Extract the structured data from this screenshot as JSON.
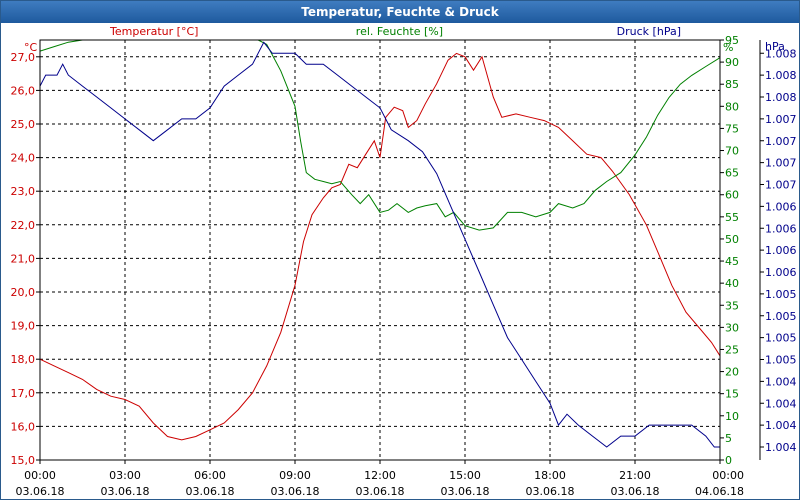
{
  "window": {
    "title": "Temperatur, Feuchte & Druck"
  },
  "colors": {
    "temperature": "#cc0000",
    "humidity": "#008000",
    "pressure": "#00008b",
    "titlebar": "#2a66aa",
    "grid": "#000000"
  },
  "chart_data": {
    "type": "line",
    "grid": true,
    "x_ticks": [
      {
        "time": "00:00",
        "date": "03.06.18"
      },
      {
        "time": "03:00",
        "date": "03.06.18"
      },
      {
        "time": "06:00",
        "date": "03.06.18"
      },
      {
        "time": "09:00",
        "date": "03.06.18"
      },
      {
        "time": "12:00",
        "date": "03.06.18"
      },
      {
        "time": "15:00",
        "date": "03.06.18"
      },
      {
        "time": "18:00",
        "date": "03.06.18"
      },
      {
        "time": "21:00",
        "date": "03.06.18"
      },
      {
        "time": "00:00",
        "date": "04.06.18"
      }
    ],
    "axes": {
      "temperature": {
        "unit": "°C",
        "ylim": [
          15,
          27.5
        ],
        "ticks": [
          "15,0",
          "16,0",
          "17,0",
          "18,0",
          "19,0",
          "20,0",
          "21,0",
          "22,0",
          "23,0",
          "24,0",
          "25,0",
          "26,0",
          "27,0"
        ]
      },
      "humidity": {
        "unit": "%",
        "ylim": [
          0,
          95
        ],
        "ticks": [
          "0",
          "5",
          "10",
          "15",
          "20",
          "25",
          "30",
          "35",
          "40",
          "45",
          "50",
          "55",
          "60",
          "65",
          "70",
          "75",
          "80",
          "85",
          "90",
          "95"
        ]
      },
      "pressure": {
        "unit": "hPa",
        "ticks": [
          "1.004",
          "1.004",
          "1.004",
          "1.004",
          "1.005",
          "1.005",
          "1.005",
          "1.005",
          "1.006",
          "1.006",
          "1.006",
          "1.006",
          "1.007",
          "1.007",
          "1.007",
          "1.007",
          "1.008",
          "1.008",
          "1.008"
        ]
      }
    },
    "series": [
      {
        "name": "Temperatur [°C]",
        "key": "temperature",
        "axis": "temperature",
        "points": [
          [
            0,
            18.0
          ],
          [
            0.5,
            17.8
          ],
          [
            1,
            17.6
          ],
          [
            1.5,
            17.4
          ],
          [
            2,
            17.1
          ],
          [
            2.5,
            16.9
          ],
          [
            3,
            16.8
          ],
          [
            3.5,
            16.6
          ],
          [
            4,
            16.1
          ],
          [
            4.5,
            15.7
          ],
          [
            5,
            15.6
          ],
          [
            5.5,
            15.7
          ],
          [
            6,
            15.9
          ],
          [
            6.5,
            16.1
          ],
          [
            7,
            16.5
          ],
          [
            7.5,
            17.0
          ],
          [
            8,
            17.8
          ],
          [
            8.5,
            18.8
          ],
          [
            9,
            20.2
          ],
          [
            9.3,
            21.5
          ],
          [
            9.6,
            22.3
          ],
          [
            10,
            22.8
          ],
          [
            10.3,
            23.1
          ],
          [
            10.6,
            23.2
          ],
          [
            10.9,
            23.8
          ],
          [
            11.2,
            23.7
          ],
          [
            11.5,
            24.1
          ],
          [
            11.8,
            24.5
          ],
          [
            12,
            24.0
          ],
          [
            12.2,
            25.2
          ],
          [
            12.5,
            25.5
          ],
          [
            12.8,
            25.4
          ],
          [
            13,
            24.9
          ],
          [
            13.3,
            25.1
          ],
          [
            13.6,
            25.6
          ],
          [
            14,
            26.2
          ],
          [
            14.4,
            26.9
          ],
          [
            14.7,
            27.1
          ],
          [
            15,
            27.0
          ],
          [
            15.3,
            26.6
          ],
          [
            15.6,
            27.0
          ],
          [
            16,
            25.8
          ],
          [
            16.3,
            25.2
          ],
          [
            16.8,
            25.3
          ],
          [
            17.3,
            25.2
          ],
          [
            17.8,
            25.1
          ],
          [
            18.3,
            24.9
          ],
          [
            18.8,
            24.5
          ],
          [
            19.3,
            24.1
          ],
          [
            19.8,
            24.0
          ],
          [
            20.2,
            23.6
          ],
          [
            20.8,
            22.9
          ],
          [
            21.4,
            22.0
          ],
          [
            21.8,
            21.2
          ],
          [
            22.3,
            20.2
          ],
          [
            22.8,
            19.4
          ],
          [
            23.3,
            18.9
          ],
          [
            23.7,
            18.5
          ],
          [
            24,
            18.1
          ]
        ]
      },
      {
        "name": "rel. Feuchte [%]",
        "key": "humidity",
        "axis": "humidity",
        "points": [
          [
            0,
            92.5
          ],
          [
            0.5,
            93.5
          ],
          [
            1,
            94.5
          ],
          [
            1.5,
            95.5
          ],
          [
            2,
            96.5
          ],
          [
            2.5,
            97.5
          ],
          [
            3,
            98.5
          ],
          [
            4,
            99.5
          ],
          [
            5,
            99.8
          ],
          [
            6,
            99.8
          ],
          [
            7,
            99.8
          ],
          [
            7.3,
            97
          ],
          [
            7.7,
            96
          ],
          [
            8,
            94
          ],
          [
            8.5,
            88
          ],
          [
            9,
            80
          ],
          [
            9.2,
            72
          ],
          [
            9.4,
            65
          ],
          [
            9.7,
            63.5
          ],
          [
            10,
            63
          ],
          [
            10.3,
            62.5
          ],
          [
            10.6,
            63
          ],
          [
            11,
            60
          ],
          [
            11.3,
            58
          ],
          [
            11.6,
            60
          ],
          [
            12,
            56
          ],
          [
            12.3,
            56.5
          ],
          [
            12.6,
            58
          ],
          [
            13,
            56
          ],
          [
            13.3,
            57
          ],
          [
            13.6,
            57.5
          ],
          [
            14,
            58
          ],
          [
            14.3,
            55
          ],
          [
            14.6,
            56
          ],
          [
            15,
            53
          ],
          [
            15.5,
            52
          ],
          [
            16,
            52.5
          ],
          [
            16.5,
            56
          ],
          [
            17,
            56
          ],
          [
            17.5,
            55
          ],
          [
            18,
            56
          ],
          [
            18.3,
            58
          ],
          [
            18.8,
            57
          ],
          [
            19.2,
            58
          ],
          [
            19.6,
            61
          ],
          [
            20,
            63
          ],
          [
            20.5,
            65
          ],
          [
            21,
            69
          ],
          [
            21.4,
            73
          ],
          [
            21.8,
            78
          ],
          [
            22.2,
            82
          ],
          [
            22.6,
            85
          ],
          [
            23,
            87
          ],
          [
            23.5,
            89
          ],
          [
            24,
            91
          ]
        ]
      },
      {
        "name": "Druck [hPa]",
        "key": "pressure",
        "axis": "pressure",
        "points": [
          [
            0,
            1007.94
          ],
          [
            0.2,
            1008.06
          ],
          [
            0.6,
            1008.06
          ],
          [
            0.8,
            1008.18
          ],
          [
            1,
            1008.06
          ],
          [
            1.5,
            1007.94
          ],
          [
            2,
            1007.82
          ],
          [
            2.5,
            1007.7
          ],
          [
            3,
            1007.58
          ],
          [
            3.5,
            1007.46
          ],
          [
            4,
            1007.34
          ],
          [
            4.5,
            1007.46
          ],
          [
            5,
            1007.58
          ],
          [
            5.5,
            1007.58
          ],
          [
            6,
            1007.7
          ],
          [
            6.5,
            1007.94
          ],
          [
            7,
            1008.06
          ],
          [
            7.5,
            1008.18
          ],
          [
            7.9,
            1008.42
          ],
          [
            8.2,
            1008.3
          ],
          [
            9,
            1008.3
          ],
          [
            9.4,
            1008.18
          ],
          [
            10,
            1008.18
          ],
          [
            10.5,
            1008.06
          ],
          [
            11,
            1007.94
          ],
          [
            11.5,
            1007.82
          ],
          [
            12,
            1007.7
          ],
          [
            12.4,
            1007.46
          ],
          [
            13,
            1007.34
          ],
          [
            13.5,
            1007.22
          ],
          [
            14,
            1006.98
          ],
          [
            14.5,
            1006.62
          ],
          [
            15,
            1006.26
          ],
          [
            15.5,
            1005.9
          ],
          [
            16,
            1005.54
          ],
          [
            16.5,
            1005.18
          ],
          [
            17,
            1004.94
          ],
          [
            17.5,
            1004.7
          ],
          [
            18,
            1004.46
          ],
          [
            18.3,
            1004.22
          ],
          [
            18.6,
            1004.34
          ],
          [
            19,
            1004.22
          ],
          [
            19.5,
            1004.1
          ],
          [
            20,
            1003.98
          ],
          [
            20.5,
            1004.1
          ],
          [
            21,
            1004.1
          ],
          [
            21.5,
            1004.22
          ],
          [
            22,
            1004.22
          ],
          [
            23,
            1004.22
          ],
          [
            23.5,
            1004.1
          ],
          [
            23.8,
            1003.98
          ],
          [
            24,
            1003.98
          ]
        ]
      }
    ]
  }
}
